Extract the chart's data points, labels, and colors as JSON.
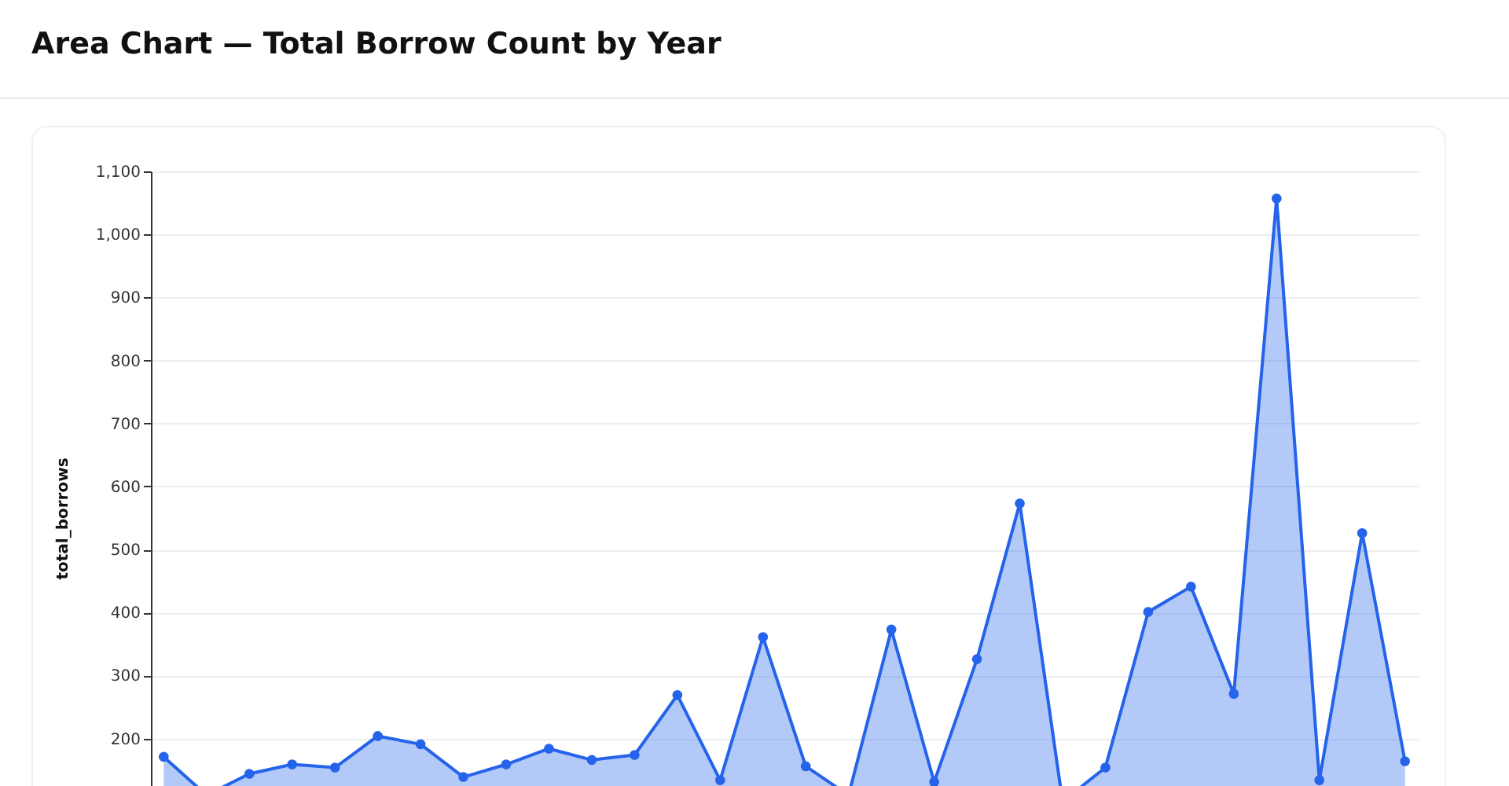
{
  "chart_data": {
    "type": "area",
    "title": "Area Chart — Total Borrow Count by Year",
    "ylabel": "total_borrows",
    "categories": [
      null,
      null,
      null,
      null,
      null,
      null,
      null,
      null,
      null,
      null,
      null,
      null,
      null,
      null,
      null,
      null,
      null,
      null,
      null,
      null,
      null,
      null,
      null,
      null,
      null,
      null,
      null,
      null,
      null,
      null
    ],
    "series": [
      {
        "color": "#2563eb",
        "values": [
          171,
          110,
          144,
          159,
          154,
          204,
          191,
          139,
          159,
          184,
          166,
          174,
          269,
          134,
          361,
          156,
          110,
          373,
          131,
          326,
          573,
          100,
          154,
          401,
          441,
          271,
          1057,
          134,
          526,
          164
        ]
      }
    ],
    "ylim": [
      0,
      1100
    ],
    "yticks": [
      200,
      300,
      400,
      500,
      600,
      700,
      800,
      900,
      {
        "value": 1000,
        "label": "1,000"
      },
      {
        "value": 1100,
        "label": "1,100"
      }
    ],
    "grid": "y",
    "marker": "circle"
  }
}
